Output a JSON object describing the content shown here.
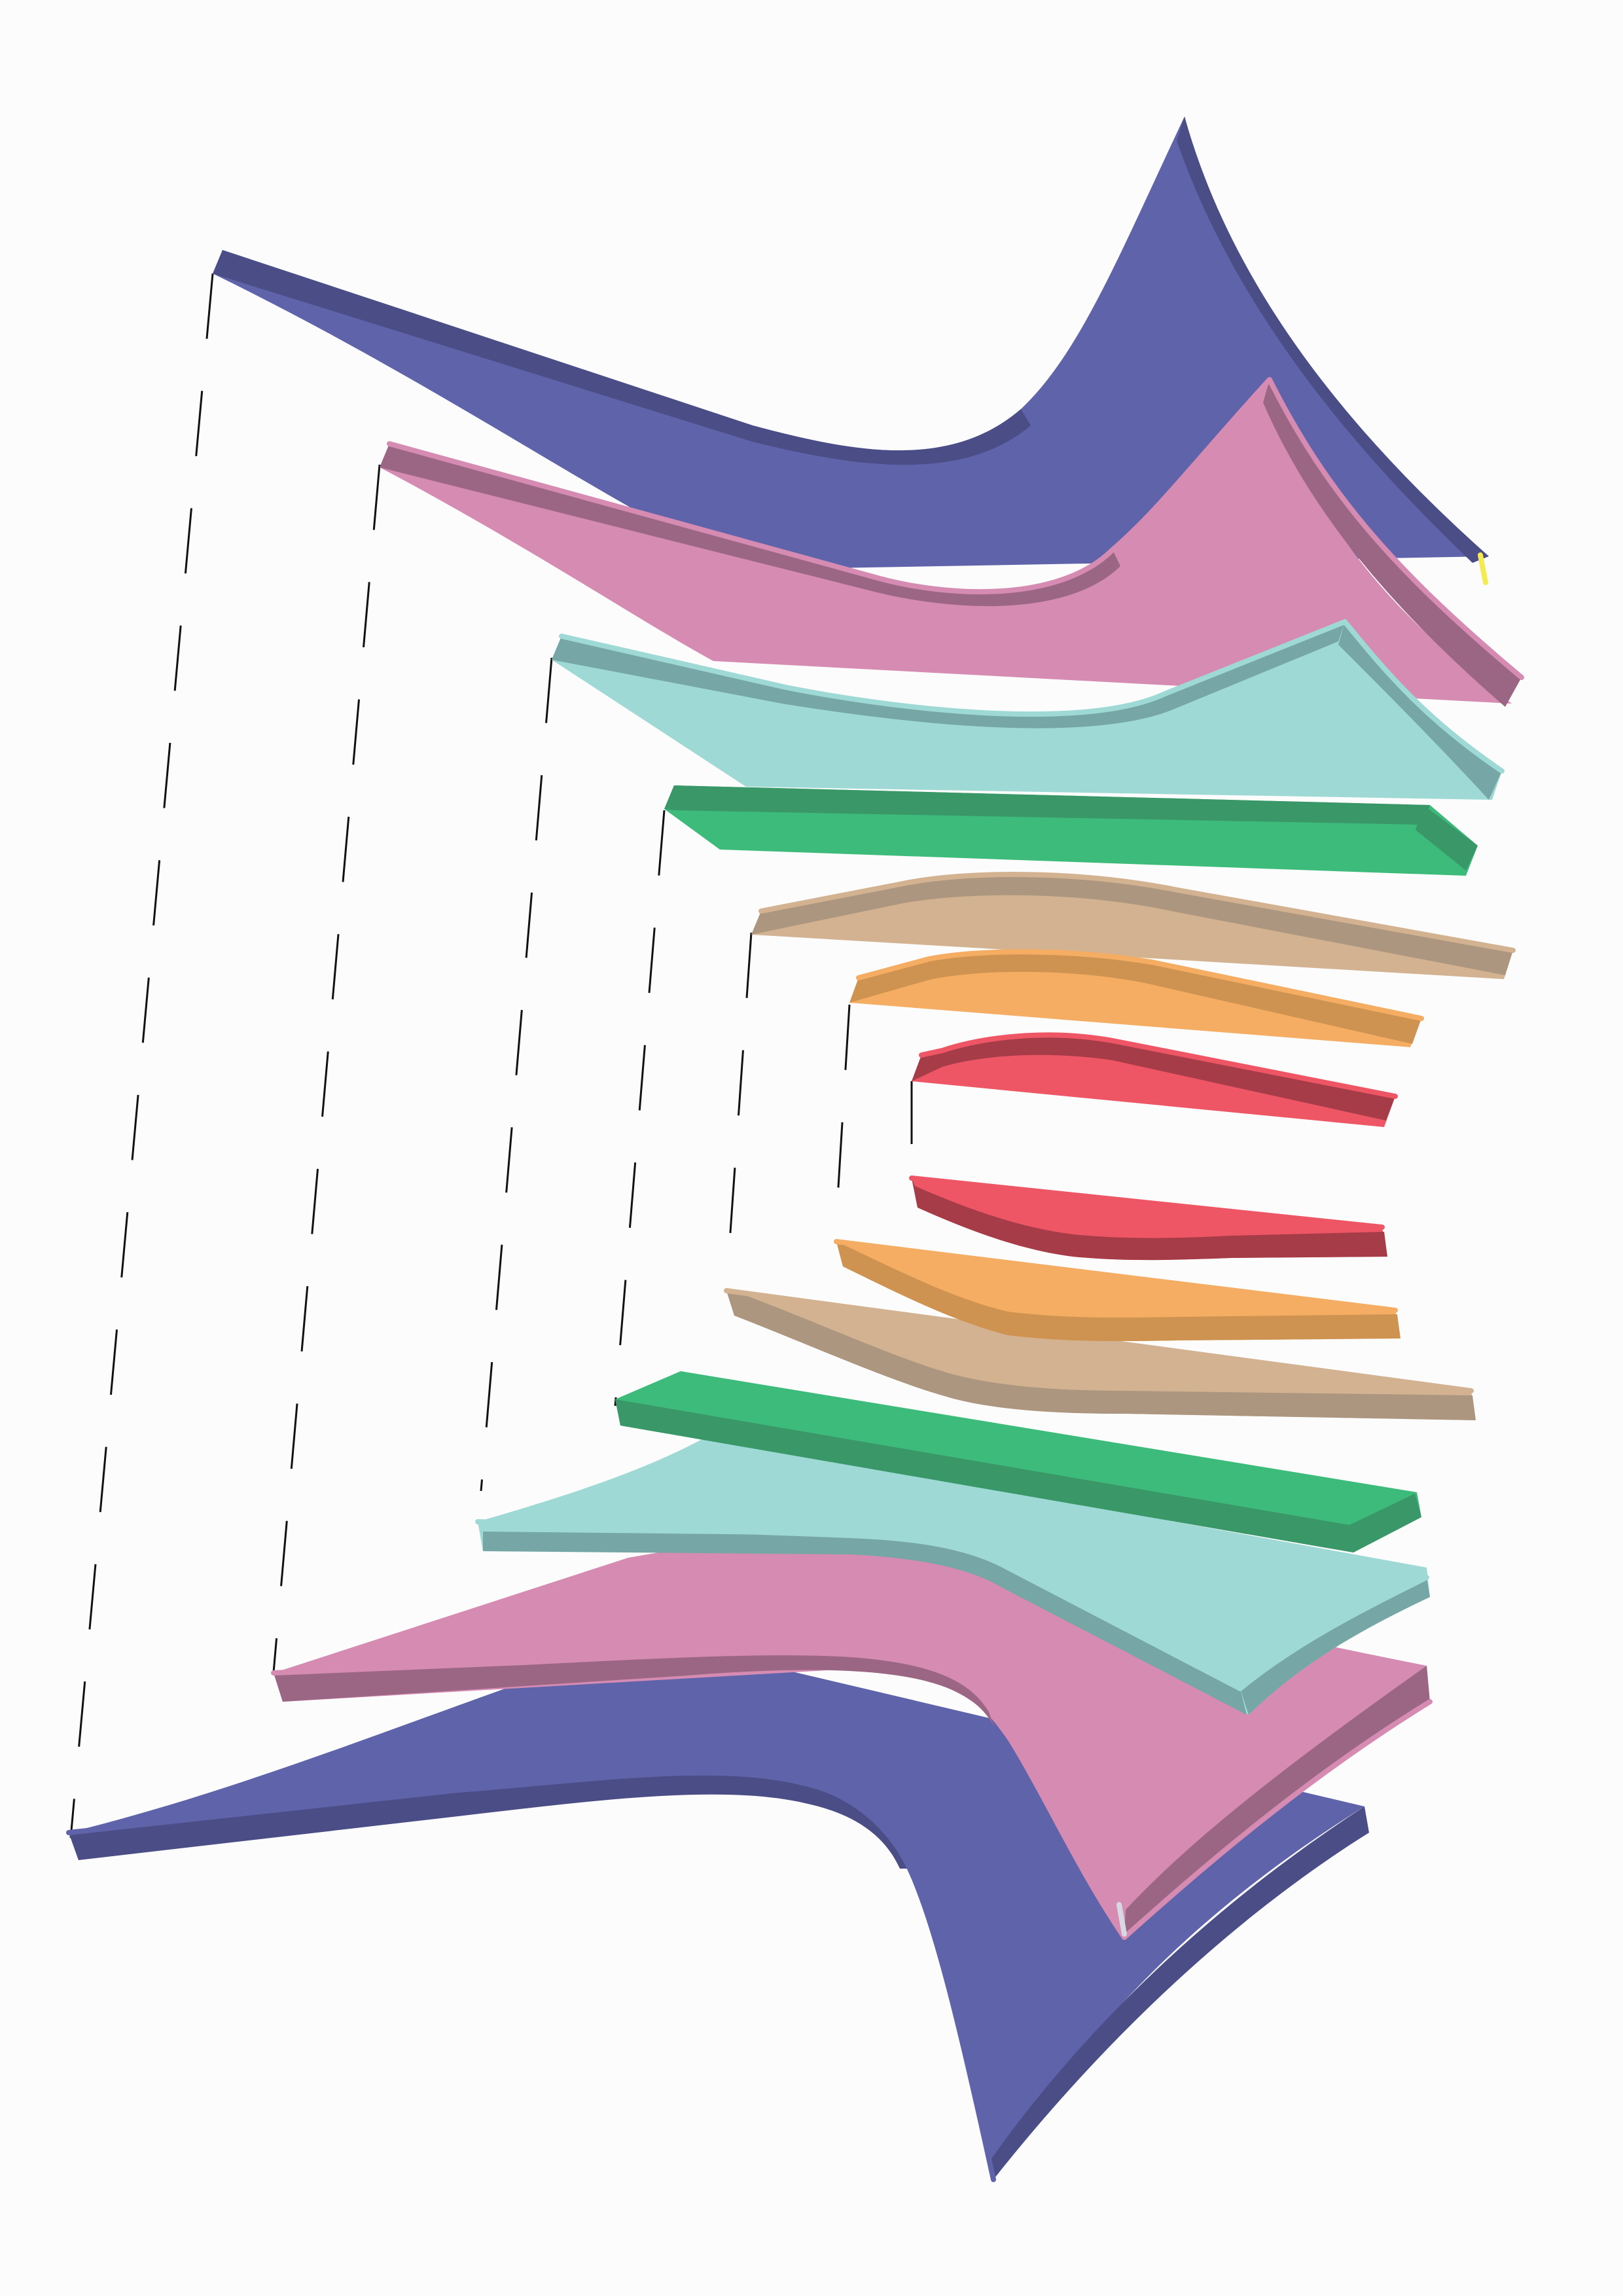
{
  "palette": {
    "background": "#fcfcfc",
    "navy": "#5f63aa",
    "navy_edge": "#4b4d86",
    "pink": "#d58bb2",
    "pink_edge": "#9b6684",
    "cyan": "#9ed9d6",
    "cyan_edge": "#76a6a5",
    "green": "#3dbb7b",
    "green_edge": "#3a9768",
    "tan": "#d2b290",
    "tan_edge": "#ac9680",
    "orange": "#f4ad62",
    "orange_edge": "#cf9351",
    "red": "#ee5666",
    "red_edge": "#a53c47",
    "accent_yellow": "#f4ea52"
  },
  "layers": [
    {
      "name": "navy",
      "count": 2
    },
    {
      "name": "pink",
      "count": 2
    },
    {
      "name": "cyan",
      "count": 2
    },
    {
      "name": "green",
      "count": 2
    },
    {
      "name": "tan",
      "count": 2
    },
    {
      "name": "orange",
      "count": 2
    },
    {
      "name": "red",
      "count": 2
    }
  ]
}
